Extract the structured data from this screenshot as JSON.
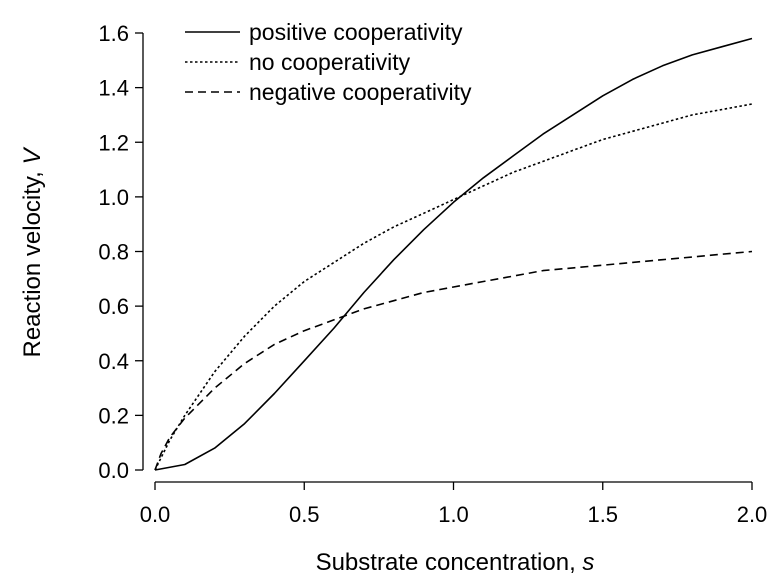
{
  "chart_data": {
    "type": "line",
    "xlabel": "Substrate concentration,",
    "xlabel_var": "s",
    "ylabel": "Reaction velocity,",
    "ylabel_var": "V",
    "xlim": [
      0,
      2
    ],
    "ylim": [
      0,
      1.6
    ],
    "xticks": [
      "0.0",
      "0.5",
      "1.0",
      "1.5",
      "2.0"
    ],
    "yticks": [
      "0.0",
      "0.2",
      "0.4",
      "0.6",
      "0.8",
      "1.0",
      "1.2",
      "1.4",
      "1.6"
    ],
    "grid": false,
    "legend_position": "top-left",
    "series": [
      {
        "name": "positive cooperativity",
        "dash": "solid",
        "points": [
          [
            0,
            0
          ],
          [
            0.1,
            0.02
          ],
          [
            0.2,
            0.08
          ],
          [
            0.3,
            0.17
          ],
          [
            0.4,
            0.28
          ],
          [
            0.5,
            0.4
          ],
          [
            0.6,
            0.52
          ],
          [
            0.7,
            0.65
          ],
          [
            0.8,
            0.77
          ],
          [
            0.9,
            0.88
          ],
          [
            1.0,
            0.98
          ],
          [
            1.1,
            1.07
          ],
          [
            1.2,
            1.15
          ],
          [
            1.3,
            1.23
          ],
          [
            1.4,
            1.3
          ],
          [
            1.5,
            1.37
          ],
          [
            1.6,
            1.43
          ],
          [
            1.7,
            1.48
          ],
          [
            1.8,
            1.52
          ],
          [
            1.9,
            1.55
          ],
          [
            2.0,
            1.58
          ]
        ]
      },
      {
        "name": "no cooperativity",
        "dash": "dotted",
        "points": [
          [
            0,
            0
          ],
          [
            0.05,
            0.11
          ],
          [
            0.1,
            0.2
          ],
          [
            0.2,
            0.36
          ],
          [
            0.3,
            0.49
          ],
          [
            0.4,
            0.6
          ],
          [
            0.5,
            0.69
          ],
          [
            0.6,
            0.76
          ],
          [
            0.7,
            0.83
          ],
          [
            0.8,
            0.89
          ],
          [
            0.9,
            0.94
          ],
          [
            1.0,
            0.99
          ],
          [
            1.1,
            1.04
          ],
          [
            1.2,
            1.09
          ],
          [
            1.3,
            1.13
          ],
          [
            1.4,
            1.17
          ],
          [
            1.5,
            1.21
          ],
          [
            1.6,
            1.24
          ],
          [
            1.7,
            1.27
          ],
          [
            1.8,
            1.3
          ],
          [
            1.9,
            1.32
          ],
          [
            2.0,
            1.34
          ]
        ]
      },
      {
        "name": "negative cooperativity",
        "dash": "dashed",
        "points": [
          [
            0,
            0
          ],
          [
            0.02,
            0.06
          ],
          [
            0.05,
            0.12
          ],
          [
            0.1,
            0.19
          ],
          [
            0.2,
            0.3
          ],
          [
            0.3,
            0.39
          ],
          [
            0.4,
            0.46
          ],
          [
            0.5,
            0.51
          ],
          [
            0.6,
            0.55
          ],
          [
            0.7,
            0.59
          ],
          [
            0.8,
            0.62
          ],
          [
            0.9,
            0.65
          ],
          [
            1.0,
            0.67
          ],
          [
            1.1,
            0.69
          ],
          [
            1.2,
            0.71
          ],
          [
            1.3,
            0.73
          ],
          [
            1.4,
            0.74
          ],
          [
            1.5,
            0.75
          ],
          [
            1.6,
            0.76
          ],
          [
            1.7,
            0.77
          ],
          [
            1.8,
            0.78
          ],
          [
            1.9,
            0.79
          ],
          [
            2.0,
            0.8
          ]
        ]
      }
    ]
  }
}
